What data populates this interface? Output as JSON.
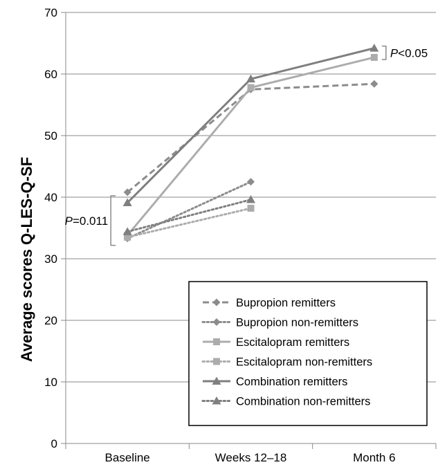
{
  "chart_data": {
    "type": "line",
    "title": "",
    "xlabel": "",
    "ylabel": "Average scores Q-LES-Q-SF",
    "categories": [
      "Baseline",
      "Weeks 12–18",
      "Month 6"
    ],
    "ylim": [
      0,
      70
    ],
    "yticks": [
      0,
      10,
      20,
      30,
      40,
      50,
      60,
      70
    ],
    "grid": "horizontal",
    "legend_position": "bottom-right",
    "series": [
      {
        "name": "Bupropion remitters",
        "values": [
          40.8,
          57.5,
          58.4
        ],
        "marker": "diamond",
        "dash": "dashed",
        "color": "#8c8c8c"
      },
      {
        "name": "Bupropion non-remitters",
        "values": [
          33.3,
          42.5,
          null
        ],
        "marker": "diamond",
        "dash": "dotted",
        "color": "#8c8c8c"
      },
      {
        "name": "Escitalopram remitters",
        "values": [
          33.8,
          57.8,
          62.7
        ],
        "marker": "square",
        "dash": "solid",
        "color": "#acacac"
      },
      {
        "name": "Escitalopram non-remitters",
        "values": [
          33.5,
          38.2,
          null
        ],
        "marker": "square",
        "dash": "dotted",
        "color": "#acacac"
      },
      {
        "name": "Combination remitters",
        "values": [
          39.1,
          59.2,
          64.2
        ],
        "marker": "triangle",
        "dash": "solid",
        "color": "#7f7f7f"
      },
      {
        "name": "Combination non-remitters",
        "values": [
          34.4,
          39.6,
          null
        ],
        "marker": "triangle",
        "dash": "dotted",
        "color": "#7f7f7f"
      }
    ],
    "annotations": [
      {
        "italic": "P",
        "rest": "=0.011",
        "category_index": 0,
        "y_range": [
          33.3,
          39.1
        ],
        "side": "left"
      },
      {
        "italic": "P",
        "rest": "<0.05",
        "category_index": 2,
        "y_range": [
          62.7,
          64.2
        ],
        "side": "right"
      }
    ]
  }
}
